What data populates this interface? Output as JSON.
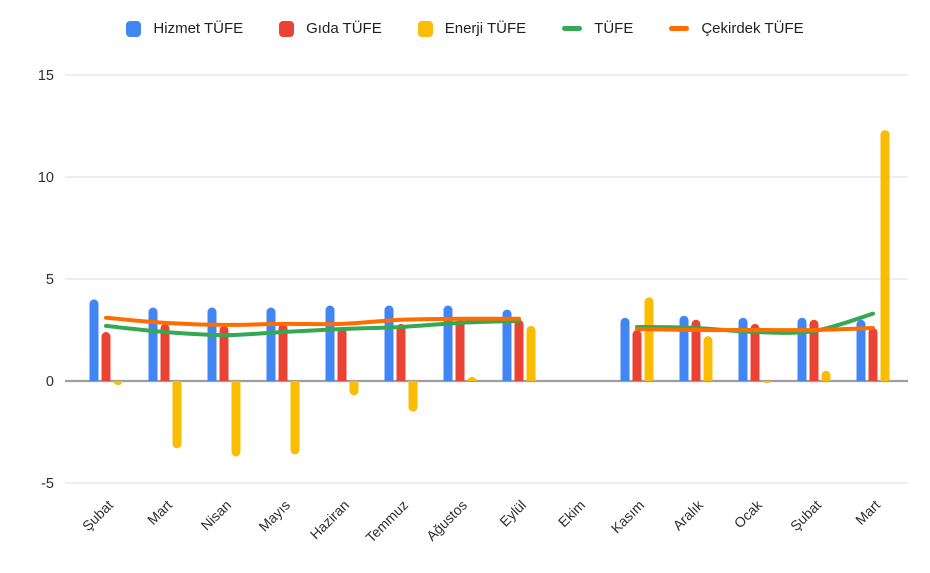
{
  "page": {
    "background": "#ffffff"
  },
  "chart_data": {
    "type": "combo_bar_line",
    "title": "",
    "xlabel": "",
    "ylabel": "",
    "categories": [
      "Şubat",
      "Mart",
      "Nisan",
      "Mayıs",
      "Haziran",
      "Temmuz",
      "Ağustos",
      "Eylül",
      "Ekim",
      "Kasım",
      "Aralık",
      "Ocak",
      "Şubat",
      "Mart"
    ],
    "bar_series": [
      {
        "name": "Hizmet TÜFE",
        "color": "#4285F4",
        "values": [
          4.0,
          3.6,
          3.6,
          3.6,
          3.7,
          3.7,
          3.7,
          3.5,
          null,
          3.1,
          3.2,
          3.1,
          3.1,
          3.0
        ]
      },
      {
        "name": "Gıda TÜFE",
        "color": "#EA4335",
        "values": [
          2.4,
          2.8,
          2.7,
          2.8,
          2.6,
          2.8,
          3.0,
          3.0,
          null,
          2.5,
          3.0,
          2.8,
          3.0,
          2.6
        ]
      },
      {
        "name": "Enerji TÜFE",
        "color": "#FBBC04",
        "values": [
          -0.2,
          -3.3,
          -3.7,
          -3.6,
          -0.7,
          -1.5,
          0.2,
          2.7,
          null,
          4.1,
          2.2,
          -0.1,
          0.5,
          12.3
        ]
      }
    ],
    "line_series": [
      {
        "name": "TÜFE",
        "color": "#34A853",
        "values": [
          2.7,
          2.4,
          2.25,
          2.4,
          2.55,
          2.65,
          2.85,
          2.95,
          null,
          2.65,
          2.6,
          2.4,
          2.45,
          3.3
        ]
      },
      {
        "name": "Çekirdek TÜFE",
        "color": "#FF6D01",
        "values": [
          3.1,
          2.85,
          2.75,
          2.8,
          2.8,
          3.0,
          3.05,
          3.05,
          null,
          2.55,
          2.5,
          2.5,
          2.5,
          2.6
        ]
      }
    ],
    "yticks": [
      -5,
      0,
      5,
      10,
      15
    ],
    "ylim": [
      -5,
      15
    ],
    "grid": true,
    "legend_position": "top",
    "colors": {
      "baseline": "#9e9e9e",
      "gridline": "#e9e9e9",
      "axis_label": "#2e2e2e"
    }
  }
}
